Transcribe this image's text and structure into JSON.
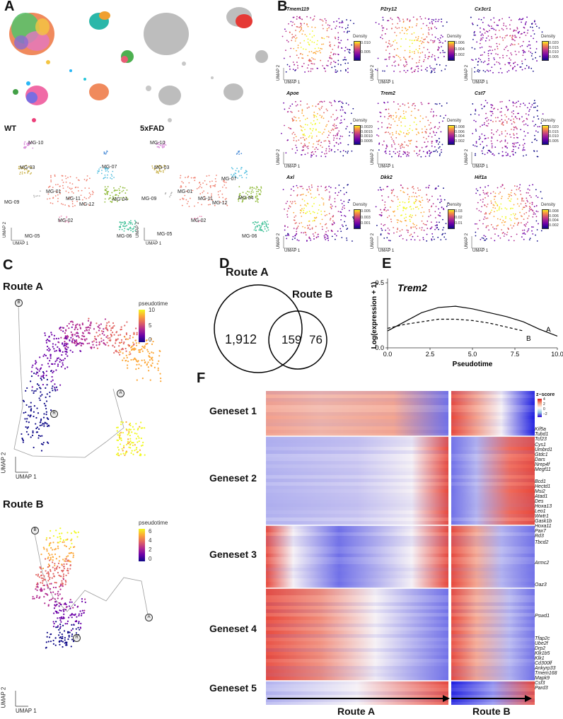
{
  "panels": {
    "a": "A",
    "b": "B",
    "c": "C",
    "d": "D",
    "e": "E",
    "f": "F"
  },
  "panelA": {
    "wt_label": "WT",
    "fad_label": "5xFAD",
    "clusters": [
      "MG-10",
      "MG-03",
      "MG-07",
      "MG-01",
      "MG-11",
      "MG-04",
      "MG-12",
      "MG-09",
      "MG-02",
      "MG-05",
      "MG-06"
    ],
    "umap1": "UMAP 1",
    "umap2": "UMAP 2"
  },
  "panelB": {
    "genes": [
      "Tmem119",
      "P2ry12",
      "Cx3cr1",
      "Apoe",
      "Trem2",
      "Cst7",
      "Axl",
      "Dkk2",
      "Hif1a"
    ],
    "density_title": "Density",
    "ticks": [
      [
        "0.010",
        "0.005"
      ],
      [
        "0.006",
        "0.004",
        "0.002"
      ],
      [
        "0.020",
        "0.015",
        "0.010",
        "0.005"
      ],
      [
        "0.0020",
        "0.0015",
        "0.0010",
        "0.0005"
      ],
      [
        "0.008",
        "0.006",
        "0.004",
        "0.002"
      ],
      [
        "0.020",
        "0.015",
        "0.010",
        "0.005"
      ],
      [
        "0.005",
        "0.003",
        "0.001"
      ],
      [
        "0.03",
        "0.02",
        "0.01"
      ],
      [
        "0.008",
        "0.006",
        "0.004",
        "0.002"
      ]
    ],
    "umap1": "UMAP 1",
    "umap2": "UMAP 2"
  },
  "panelC": {
    "route_a_title": "Route A",
    "route_b_title": "Route B",
    "legend_title": "pseudotime",
    "route_a_ticks": [
      "10",
      "5",
      "0"
    ],
    "route_b_ticks": [
      "6",
      "4",
      "2",
      "0"
    ],
    "node_a": "A",
    "node_b": "B",
    "node_r": "R",
    "umap1": "UMAP 1",
    "umap2": "UMAP 2"
  },
  "panelD": {
    "set_a_label": "Route A",
    "set_b_label": "Route B",
    "only_a": "1,912",
    "both": "159",
    "only_b": "76"
  },
  "chart_data": {
    "type": "line",
    "title": "Trem2",
    "xlabel": "Pseudotime",
    "ylabel": "Log(expression + 1)",
    "xlim": [
      0,
      10
    ],
    "ylim": [
      0,
      0.5
    ],
    "xticks": [
      "0.0",
      "2.5",
      "5.0",
      "7.5",
      "10.0"
    ],
    "yticks": [
      "0.0",
      "0.5"
    ],
    "series": [
      {
        "name": "A",
        "style": "solid",
        "x": [
          0,
          1,
          2,
          3,
          4,
          5,
          6,
          7,
          8,
          9,
          10
        ],
        "y": [
          0.13,
          0.2,
          0.27,
          0.31,
          0.32,
          0.3,
          0.27,
          0.24,
          0.2,
          0.14,
          0.09
        ]
      },
      {
        "name": "B",
        "style": "dashed",
        "x": [
          0,
          1,
          2,
          3,
          4,
          5,
          6,
          7,
          8
        ],
        "y": [
          0.15,
          0.18,
          0.2,
          0.22,
          0.22,
          0.21,
          0.19,
          0.16,
          0.13
        ]
      }
    ]
  },
  "panelF": {
    "genesets": [
      "Geneset 1",
      "Geneset 2",
      "Geneset 3",
      "Geneset 4",
      "Geneset 5"
    ],
    "route_a": "Route A",
    "route_b": "Route B",
    "legend_title": "z−score",
    "legend_ticks": [
      "4",
      "2",
      "0",
      "−2"
    ],
    "genes": [
      "Kif5a",
      "Tubd1",
      "Tcf23",
      "Cys1",
      "Umbrd1",
      "Gtdc1",
      "Dars",
      "Nrep4f",
      "Megf11",
      "Bcd1",
      "Hectd1",
      "Msi2",
      "Atad1",
      "Des",
      "Hoxa13",
      "Leo1",
      "Wwtr1",
      "Gask1b",
      "Hoxa11",
      "Pax7",
      "Rd3",
      "Tbcd2",
      "Armc2",
      "Oaz3",
      "Pswd1",
      "Tfap2c",
      "Ube2f",
      "Drp2",
      "Klk1b5",
      "Klk1",
      "Cd300lf",
      "Ankyrp33",
      "Tmem168",
      "Mapk9",
      "Csf3",
      "Pard3"
    ]
  }
}
